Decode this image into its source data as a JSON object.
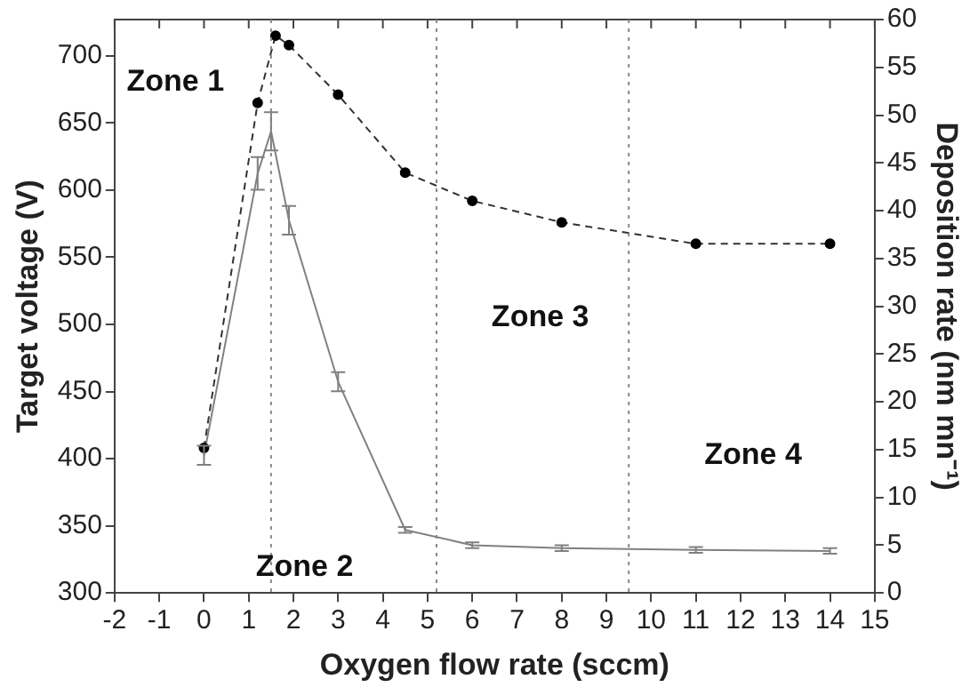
{
  "chart_data": {
    "type": "line",
    "xlabel": "Oxygen flow rate (sccm)",
    "ylabel": "Target voltage (V)",
    "y2label": "Deposition rate (nm mn⁻¹)",
    "xlim": [
      -2,
      15
    ],
    "xticks": [
      -2,
      -1,
      0,
      1,
      2,
      3,
      4,
      5,
      6,
      7,
      8,
      9,
      10,
      11,
      12,
      13,
      14,
      15
    ],
    "ylim": [
      300,
      727
    ],
    "yticks": [
      300,
      350,
      400,
      450,
      500,
      550,
      600,
      650,
      700
    ],
    "y2lim": [
      0,
      60
    ],
    "y2ticks": [
      0,
      5,
      10,
      15,
      20,
      25,
      30,
      35,
      40,
      45,
      50,
      55,
      60
    ],
    "grid": false,
    "legend": false,
    "series": [
      {
        "color": "#333333",
        "marker": "circle",
        "line_style": "dashed",
        "x": [
          0,
          1.2,
          1.6,
          1.9,
          3,
          4.5,
          6,
          8,
          11,
          14
        ],
        "values": [
          408,
          665,
          715,
          708,
          671,
          613,
          592,
          576,
          560,
          560
        ]
      },
      {
        "color": "#808080",
        "marker": "none",
        "line_style": "solid",
        "axis": "y2",
        "x": [
          0,
          1.2,
          1.5,
          1.9,
          3,
          4.5,
          6,
          8,
          11,
          14
        ],
        "values": [
          14.4,
          43.9,
          48.3,
          39,
          22.1,
          6.6,
          5,
          4.7,
          4.5,
          4.4
        ],
        "errors": [
          1,
          1.7,
          2,
          1.5,
          1,
          0.3,
          0.3,
          0.3,
          0.3,
          0.3
        ]
      }
    ],
    "ref_lines": [
      {
        "axis": "x",
        "value": 1.5,
        "color": "#888888",
        "line_style": "dotted"
      },
      {
        "axis": "x",
        "value": 5.2,
        "color": "#888888",
        "line_style": "dotted"
      },
      {
        "axis": "x",
        "value": 9.5,
        "color": "#888888",
        "line_style": "dotted"
      }
    ],
    "annotations": [
      "Zone 1",
      "Zone 2",
      "Zone 3",
      "Zone 4"
    ]
  }
}
